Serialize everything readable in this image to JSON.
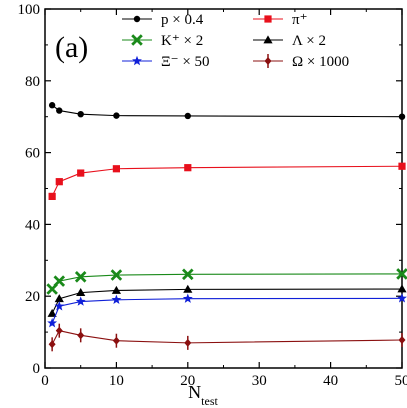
{
  "chart_data": {
    "type": "line",
    "panel_label": "(a)",
    "xlabel": "N",
    "xlabel_sub": "test",
    "ylabel": "",
    "xlim": [
      0,
      50
    ],
    "ylim": [
      0,
      100
    ],
    "x_ticks": [
      0,
      10,
      20,
      30,
      40,
      50
    ],
    "y_ticks": [
      0,
      20,
      40,
      60,
      80,
      100
    ],
    "x_tick_labels": [
      "0",
      "10",
      "20",
      "30",
      "40",
      "50"
    ],
    "y_tick_labels": [
      "0",
      "20",
      "40",
      "60",
      "80",
      "100"
    ],
    "grid": false,
    "legend_position": "top-right",
    "x": [
      1,
      2,
      5,
      10,
      20,
      50
    ],
    "series": [
      {
        "name": "p × 0.4",
        "color": "#000000",
        "marker": "circle",
        "values": [
          73.2,
          71.7,
          70.7,
          70.3,
          70.2,
          70.0
        ]
      },
      {
        "name": "π⁺",
        "color": "#e8101c",
        "marker": "square",
        "values": [
          47.8,
          51.9,
          54.3,
          55.5,
          55.8,
          56.2
        ]
      },
      {
        "name": "K⁺ × 2",
        "color": "#1a8a1a",
        "marker": "x",
        "values": [
          22.0,
          24.2,
          25.4,
          25.9,
          26.1,
          26.2
        ]
      },
      {
        "name": "Λ × 2",
        "color": "#000000",
        "marker": "triangle",
        "values": [
          15.2,
          19.3,
          21.0,
          21.6,
          21.9,
          22.0
        ]
      },
      {
        "name": "Ξ⁻ × 50",
        "color": "#1020d8",
        "marker": "star",
        "values": [
          12.5,
          17.2,
          18.5,
          19.0,
          19.3,
          19.4
        ]
      },
      {
        "name": "Ω × 1000",
        "color": "#8b1010",
        "marker": "diamond-errorbar",
        "values": [
          6.6,
          10.4,
          9.1,
          7.6,
          7.0,
          7.8
        ]
      }
    ]
  }
}
